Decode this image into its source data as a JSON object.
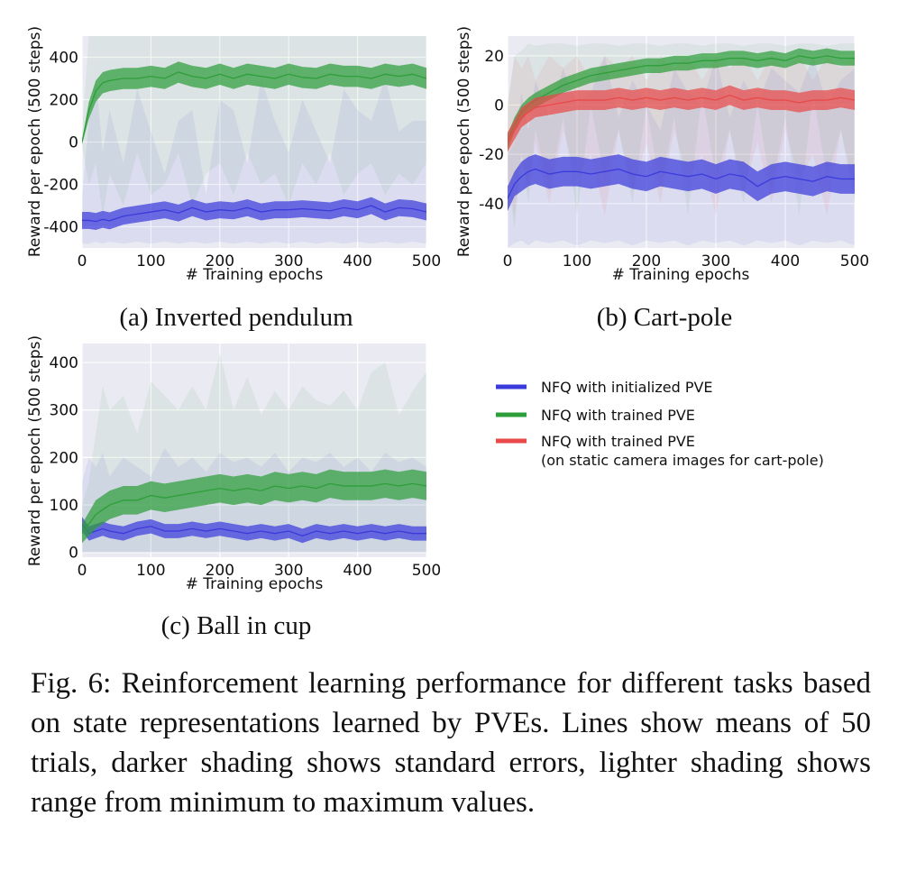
{
  "chart_data": [
    {
      "type": "line",
      "caption": "(a) Inverted pendulum",
      "xlabel": "# Training epochs",
      "ylabel": "Reward per epoch (500 steps)",
      "xlim": [
        0,
        500
      ],
      "ylim": [
        -500,
        500
      ],
      "xticks": [
        0,
        100,
        200,
        300,
        400,
        500
      ],
      "xtick_labels": [
        "0",
        "100",
        "200",
        "300",
        "400",
        "500"
      ],
      "yticks": [
        400,
        200,
        0,
        -200,
        -400
      ],
      "ytick_labels": [
        "400",
        "200",
        "0",
        "-200",
        "-400"
      ],
      "grid": true,
      "x": [
        0,
        10,
        20,
        30,
        40,
        60,
        80,
        100,
        120,
        140,
        160,
        180,
        200,
        220,
        240,
        260,
        280,
        300,
        320,
        340,
        360,
        380,
        400,
        420,
        440,
        460,
        480,
        500
      ],
      "series": [
        {
          "name": "NFQ with initialized PVE",
          "color": "#3b3bdb",
          "mean": [
            -370,
            -370,
            -375,
            -365,
            -372,
            -350,
            -340,
            -330,
            -320,
            -335,
            -310,
            -330,
            -320,
            -325,
            -310,
            -330,
            -320,
            -320,
            -315,
            -320,
            -325,
            -310,
            -320,
            -300,
            -330,
            -310,
            -315,
            -330
          ],
          "se": [
            40,
            40,
            40,
            40,
            40,
            40,
            40,
            40,
            40,
            40,
            40,
            40,
            40,
            40,
            40,
            40,
            40,
            40,
            40,
            40,
            40,
            40,
            40,
            40,
            40,
            40,
            40,
            40
          ],
          "min": [
            -480,
            -480,
            -470,
            -480,
            -470,
            -480,
            -470,
            -480,
            -470,
            -480,
            -470,
            -480,
            -470,
            -480,
            -470,
            -480,
            -470,
            -480,
            -470,
            -480,
            -470,
            -480,
            -470,
            -480,
            -470,
            -480,
            -470,
            -480
          ],
          "max": [
            -250,
            100,
            300,
            -50,
            150,
            -100,
            250,
            50,
            -150,
            100,
            150,
            -250,
            200,
            150,
            -100,
            300,
            100,
            -50,
            200,
            50,
            -100,
            250,
            150,
            100,
            300,
            50,
            100,
            100
          ]
        },
        {
          "name": "NFQ with trained PVE",
          "color": "#2e9e3a",
          "mean": [
            0,
            150,
            240,
            280,
            290,
            300,
            300,
            310,
            300,
            330,
            310,
            300,
            320,
            300,
            320,
            310,
            300,
            320,
            305,
            300,
            320,
            310,
            310,
            300,
            320,
            310,
            320,
            300
          ],
          "se": [
            10,
            40,
            50,
            50,
            50,
            50,
            50,
            50,
            50,
            50,
            50,
            50,
            50,
            50,
            50,
            50,
            50,
            50,
            50,
            50,
            50,
            50,
            50,
            50,
            50,
            50,
            50,
            50
          ],
          "min": [
            -20,
            -200,
            -100,
            -350,
            -150,
            -300,
            -50,
            -250,
            -200,
            -50,
            -300,
            -150,
            -100,
            -250,
            -50,
            -200,
            -150,
            -300,
            -100,
            -200,
            -50,
            -250,
            -150,
            -100,
            -250,
            -150,
            -200,
            -100
          ],
          "max": [
            50,
            500,
            500,
            500,
            500,
            500,
            500,
            500,
            500,
            500,
            500,
            500,
            500,
            500,
            500,
            500,
            500,
            500,
            500,
            500,
            500,
            500,
            500,
            500,
            500,
            500,
            500,
            500
          ]
        }
      ]
    },
    {
      "type": "line",
      "caption": "(b) Cart-pole",
      "xlabel": "# Training epochs",
      "ylabel": "Reward per epoch (500 steps)",
      "xlim": [
        0,
        500
      ],
      "ylim": [
        -58,
        28
      ],
      "xticks": [
        0,
        100,
        200,
        300,
        400,
        500
      ],
      "xtick_labels": [
        "0",
        "100",
        "200",
        "300",
        "400",
        "500"
      ],
      "yticks": [
        20,
        0,
        -20,
        -40
      ],
      "ytick_labels": [
        "20",
        "0",
        "-20",
        "-40"
      ],
      "grid": true,
      "x": [
        0,
        10,
        20,
        30,
        40,
        60,
        80,
        100,
        120,
        140,
        160,
        180,
        200,
        220,
        240,
        260,
        280,
        300,
        320,
        340,
        360,
        380,
        400,
        420,
        440,
        460,
        480,
        500
      ],
      "series": [
        {
          "name": "NFQ with initialized PVE",
          "color": "#3b3bdb",
          "mean": [
            -38,
            -32,
            -29,
            -27,
            -26,
            -28,
            -27,
            -27,
            -28,
            -27,
            -26,
            -28,
            -29,
            -27,
            -28,
            -29,
            -28,
            -30,
            -28,
            -29,
            -33,
            -30,
            -29,
            -30,
            -31,
            -29,
            -30,
            -30
          ],
          "se": [
            5,
            5,
            6,
            6,
            6,
            6,
            6,
            6,
            6,
            6,
            6,
            6,
            6,
            6,
            6,
            6,
            6,
            6,
            6,
            6,
            6,
            6,
            6,
            6,
            6,
            6,
            6,
            6
          ],
          "min": [
            -58,
            -56,
            -55,
            -57,
            -55,
            -56,
            -55,
            -57,
            -55,
            -56,
            -55,
            -57,
            -55,
            -56,
            -55,
            -57,
            -55,
            -56,
            -55,
            -57,
            -55,
            -56,
            -55,
            -57,
            -55,
            -56,
            -55,
            -57
          ],
          "max": [
            -20,
            -15,
            5,
            -10,
            10,
            -5,
            15,
            0,
            5,
            20,
            -5,
            10,
            0,
            -10,
            15,
            5,
            0,
            20,
            -5,
            10,
            0,
            15,
            10,
            5,
            20,
            0,
            10,
            15
          ]
        },
        {
          "name": "NFQ with trained PVE",
          "color": "#2e9e3a",
          "mean": [
            -15,
            -8,
            -3,
            0,
            2,
            5,
            8,
            10,
            12,
            13,
            14,
            15,
            16,
            16,
            17,
            17,
            18,
            18,
            19,
            19,
            18,
            19,
            18,
            20,
            19,
            20,
            19,
            19
          ],
          "se": [
            3,
            3,
            3,
            3,
            3,
            3,
            3,
            3,
            3,
            3,
            3,
            3,
            3,
            3,
            3,
            3,
            3,
            3,
            3,
            3,
            3,
            3,
            3,
            3,
            3,
            3,
            3,
            3
          ],
          "min": [
            -30,
            -50,
            -20,
            -40,
            -10,
            -35,
            -5,
            -45,
            0,
            -30,
            -10,
            -40,
            0,
            -35,
            -5,
            -45,
            5,
            -30,
            -10,
            -40,
            0,
            -35,
            -5,
            -45,
            5,
            -30,
            -10,
            -40
          ],
          "max": [
            0,
            20,
            22,
            25,
            24,
            25,
            25,
            24,
            25,
            25,
            24,
            25,
            25,
            24,
            25,
            25,
            24,
            25,
            25,
            24,
            25,
            25,
            24,
            25,
            25,
            24,
            25,
            25
          ]
        },
        {
          "name": "NFQ with trained PVE (on static camera images for cart-pole)",
          "color": "#e84a4a",
          "mean": [
            -15,
            -10,
            -5,
            -3,
            -1,
            0,
            1,
            2,
            2,
            2,
            3,
            2,
            3,
            2,
            3,
            2,
            3,
            2,
            4,
            2,
            3,
            2,
            2,
            1,
            2,
            2,
            3,
            2
          ],
          "se": [
            4,
            4,
            4,
            4,
            4,
            4,
            4,
            4,
            4,
            4,
            4,
            4,
            4,
            4,
            4,
            4,
            4,
            4,
            4,
            4,
            4,
            4,
            4,
            4,
            4,
            4,
            4,
            4
          ],
          "min": [
            -30,
            -45,
            -20,
            -35,
            -15,
            -40,
            -10,
            -30,
            -20,
            -45,
            -10,
            -35,
            -15,
            -40,
            -10,
            -30,
            -20,
            -45,
            -10,
            -35,
            -15,
            -40,
            -10,
            -30,
            -20,
            -45,
            -10,
            -35
          ],
          "max": [
            0,
            20,
            15,
            20,
            10,
            20,
            15,
            20,
            10,
            20,
            15,
            20,
            10,
            20,
            15,
            20,
            10,
            20,
            15,
            20,
            10,
            20,
            15,
            20,
            10,
            20,
            15,
            20
          ]
        }
      ]
    },
    {
      "type": "line",
      "caption": "(c) Ball in cup",
      "xlabel": "# Training epochs",
      "ylabel": "Reward per epoch (500 steps)",
      "xlim": [
        0,
        500
      ],
      "ylim": [
        -10,
        440
      ],
      "xticks": [
        0,
        100,
        200,
        300,
        400,
        500
      ],
      "xtick_labels": [
        "0",
        "100",
        "200",
        "300",
        "400",
        "500"
      ],
      "yticks": [
        400,
        300,
        200,
        100,
        0
      ],
      "ytick_labels": [
        "400",
        "300",
        "200",
        "100",
        "0"
      ],
      "grid": true,
      "x": [
        0,
        10,
        20,
        30,
        40,
        60,
        80,
        100,
        120,
        140,
        160,
        180,
        200,
        220,
        240,
        260,
        280,
        300,
        320,
        340,
        360,
        380,
        400,
        420,
        440,
        460,
        480,
        500
      ],
      "series": [
        {
          "name": "NFQ with initialized PVE",
          "color": "#3b3bdb",
          "mean": [
            60,
            40,
            45,
            50,
            45,
            40,
            50,
            55,
            45,
            45,
            50,
            45,
            50,
            45,
            40,
            45,
            40,
            45,
            35,
            45,
            40,
            45,
            40,
            45,
            40,
            45,
            40,
            40
          ],
          "se": [
            15,
            15,
            15,
            15,
            15,
            15,
            15,
            15,
            15,
            15,
            15,
            15,
            15,
            15,
            15,
            15,
            15,
            15,
            15,
            15,
            15,
            15,
            15,
            15,
            15,
            15,
            15,
            15
          ],
          "min": [
            0,
            0,
            0,
            0,
            0,
            0,
            0,
            0,
            0,
            0,
            0,
            0,
            0,
            0,
            0,
            0,
            0,
            0,
            0,
            0,
            0,
            0,
            0,
            0,
            0,
            0,
            0,
            0
          ],
          "max": [
            150,
            200,
            180,
            210,
            160,
            200,
            180,
            160,
            220,
            180,
            200,
            170,
            210,
            190,
            200,
            180,
            210,
            170,
            200,
            190,
            210,
            180,
            200,
            170,
            210,
            190,
            200,
            180
          ]
        },
        {
          "name": "NFQ with trained PVE",
          "color": "#2e9e3a",
          "mean": [
            40,
            60,
            80,
            90,
            100,
            110,
            110,
            120,
            115,
            120,
            125,
            130,
            135,
            130,
            135,
            130,
            140,
            135,
            140,
            135,
            145,
            140,
            140,
            140,
            145,
            140,
            145,
            140
          ],
          "se": [
            20,
            25,
            30,
            30,
            30,
            30,
            30,
            30,
            30,
            30,
            30,
            30,
            30,
            30,
            30,
            30,
            30,
            30,
            30,
            30,
            30,
            30,
            30,
            30,
            30,
            30,
            30,
            30
          ],
          "min": [
            0,
            0,
            0,
            0,
            0,
            0,
            0,
            0,
            0,
            0,
            0,
            0,
            0,
            0,
            0,
            0,
            0,
            0,
            0,
            0,
            0,
            0,
            0,
            0,
            0,
            0,
            0,
            0
          ],
          "max": [
            100,
            150,
            250,
            350,
            300,
            330,
            250,
            360,
            330,
            300,
            350,
            300,
            420,
            300,
            370,
            290,
            340,
            300,
            350,
            320,
            310,
            340,
            300,
            380,
            400,
            290,
            340,
            380
          ]
        }
      ]
    }
  ],
  "legend": [
    {
      "label": "NFQ with initialized PVE",
      "color": "#3b3bdb"
    },
    {
      "label": "NFQ with trained PVE",
      "color": "#2e9e3a"
    },
    {
      "label": "NFQ with trained PVE",
      "sublabel": "(on static camera images for cart-pole)",
      "color": "#e84a4a"
    }
  ],
  "figure_caption": "Fig. 6: Reinforcement learning performance for different tasks based on state representations learned by PVEs. Lines show means of 50 trials, darker shading shows standard errors, lighter shading shows range from minimum to maximum values."
}
